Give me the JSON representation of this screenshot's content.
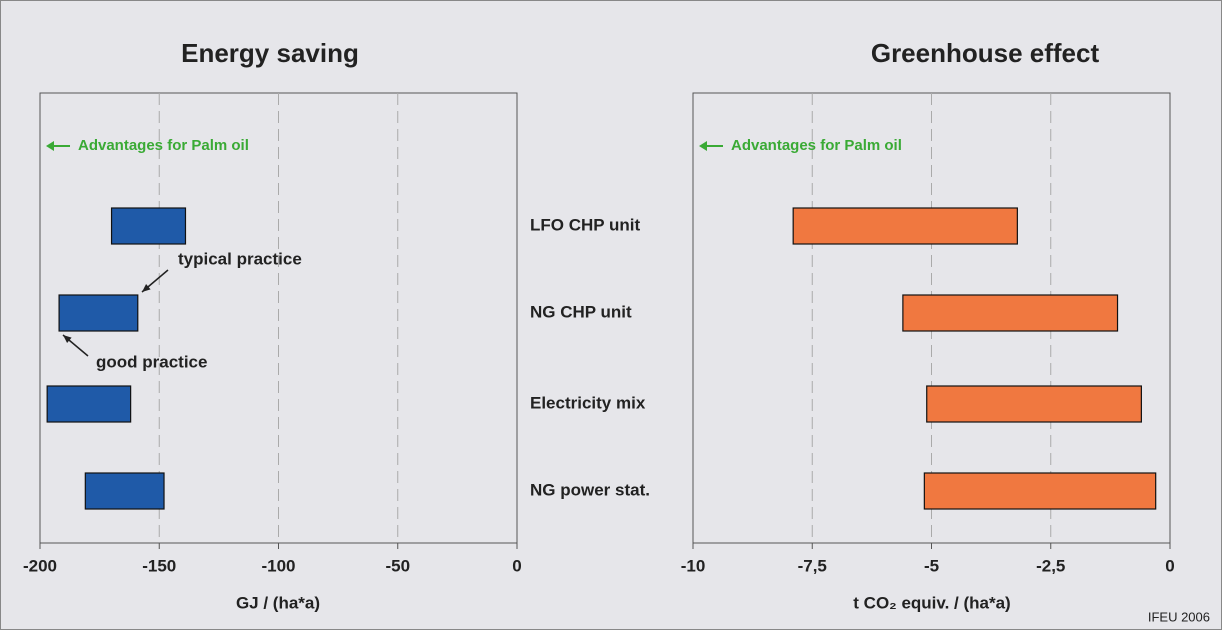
{
  "chart_data": [
    {
      "type": "bar",
      "title": "Energy saving",
      "xlabel": "GJ / (ha*a)",
      "values": [
        [
          -170,
          -139
        ],
        [
          -192,
          -159
        ],
        [
          -197,
          -162
        ],
        [
          -181,
          -148
        ]
      ],
      "color": "#1f5aa8",
      "xlim": [
        -200,
        0
      ],
      "xticks": [
        -200,
        -150,
        -100,
        -50,
        0
      ],
      "grid": true,
      "note": "Advantages for Palm oil",
      "annotations": [
        "typical practice",
        "good practice"
      ]
    },
    {
      "type": "bar",
      "title": "Greenhouse effect",
      "xlabel": "t CO₂ equiv. / (ha*a)",
      "categories": [
        "LFO CHP unit",
        "NG CHP unit",
        "Electricity mix",
        "NG power stat."
      ],
      "values": [
        [
          -7.9,
          -3.2
        ],
        [
          -5.6,
          -1.1
        ],
        [
          -5.1,
          -0.6
        ],
        [
          -5.15,
          -0.3
        ]
      ],
      "color": "#f07840",
      "xlim": [
        -10,
        0
      ],
      "xticks": [
        -10,
        {
          "value": -7.5,
          "label": "-7,5"
        },
        -5,
        {
          "value": -2.5,
          "label": "-2,5"
        },
        0
      ],
      "grid": true,
      "note": "Advantages for Palm oil"
    }
  ],
  "source": "IFEU 2006"
}
